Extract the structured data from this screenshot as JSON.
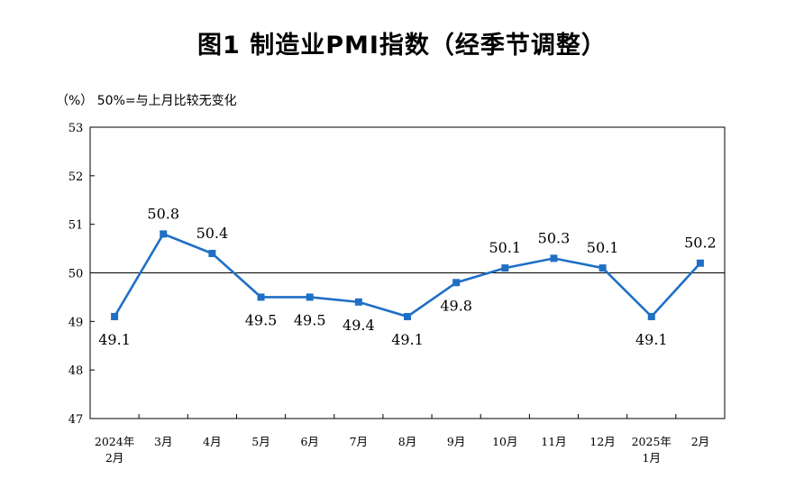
{
  "chart_data": {
    "type": "line",
    "title": "图1  制造业PMI指数（经季节调整）",
    "note": "（%）  50%=与上月比较无变化",
    "categories": [
      [
        "2024年",
        "2月"
      ],
      [
        "3月"
      ],
      [
        "4月"
      ],
      [
        "5月"
      ],
      [
        "6月"
      ],
      [
        "7月"
      ],
      [
        "8月"
      ],
      [
        "9月"
      ],
      [
        "10月"
      ],
      [
        "11月"
      ],
      [
        "12月"
      ],
      [
        "2025年",
        "1月"
      ],
      [
        "2月"
      ]
    ],
    "values": [
      49.1,
      50.8,
      50.4,
      49.5,
      49.5,
      49.4,
      49.1,
      49.8,
      50.1,
      50.3,
      50.1,
      49.1,
      50.2
    ],
    "data_labels": [
      "49.1",
      "50.8",
      "50.4",
      "49.5",
      "49.5",
      "49.4",
      "49.1",
      "49.8",
      "50.1",
      "50.3",
      "50.1",
      "49.1",
      "50.2"
    ],
    "label_side": [
      "below",
      "above",
      "above",
      "below",
      "below",
      "below",
      "below",
      "below",
      "above",
      "above",
      "above",
      "below",
      "above"
    ],
    "ylim": [
      47,
      53
    ],
    "yticks": [
      "47",
      "48",
      "49",
      "50",
      "51",
      "52",
      "53"
    ],
    "reference_line": 50,
    "grid": false,
    "line_color": "#1f6fc5"
  }
}
